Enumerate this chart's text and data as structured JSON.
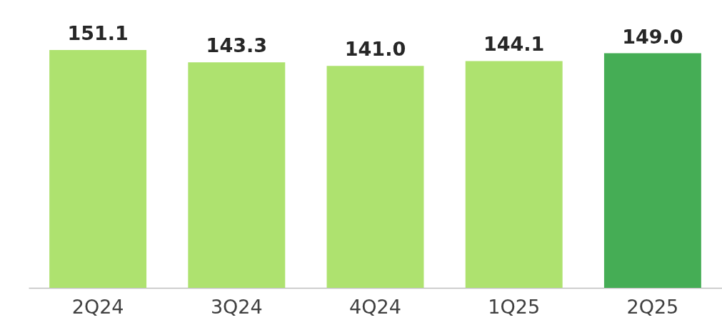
{
  "chart_data": {
    "type": "bar",
    "categories": [
      "2Q24",
      "3Q24",
      "4Q24",
      "1Q25",
      "2Q25"
    ],
    "values": [
      151.1,
      143.3,
      141.0,
      144.1,
      149.0
    ],
    "value_labels": [
      "151.1",
      "143.3",
      "141.0",
      "144.1",
      "149.0"
    ],
    "colors": [
      "#aee26f",
      "#aee26f",
      "#aee26f",
      "#aee26f",
      "#45ad55"
    ]
  }
}
